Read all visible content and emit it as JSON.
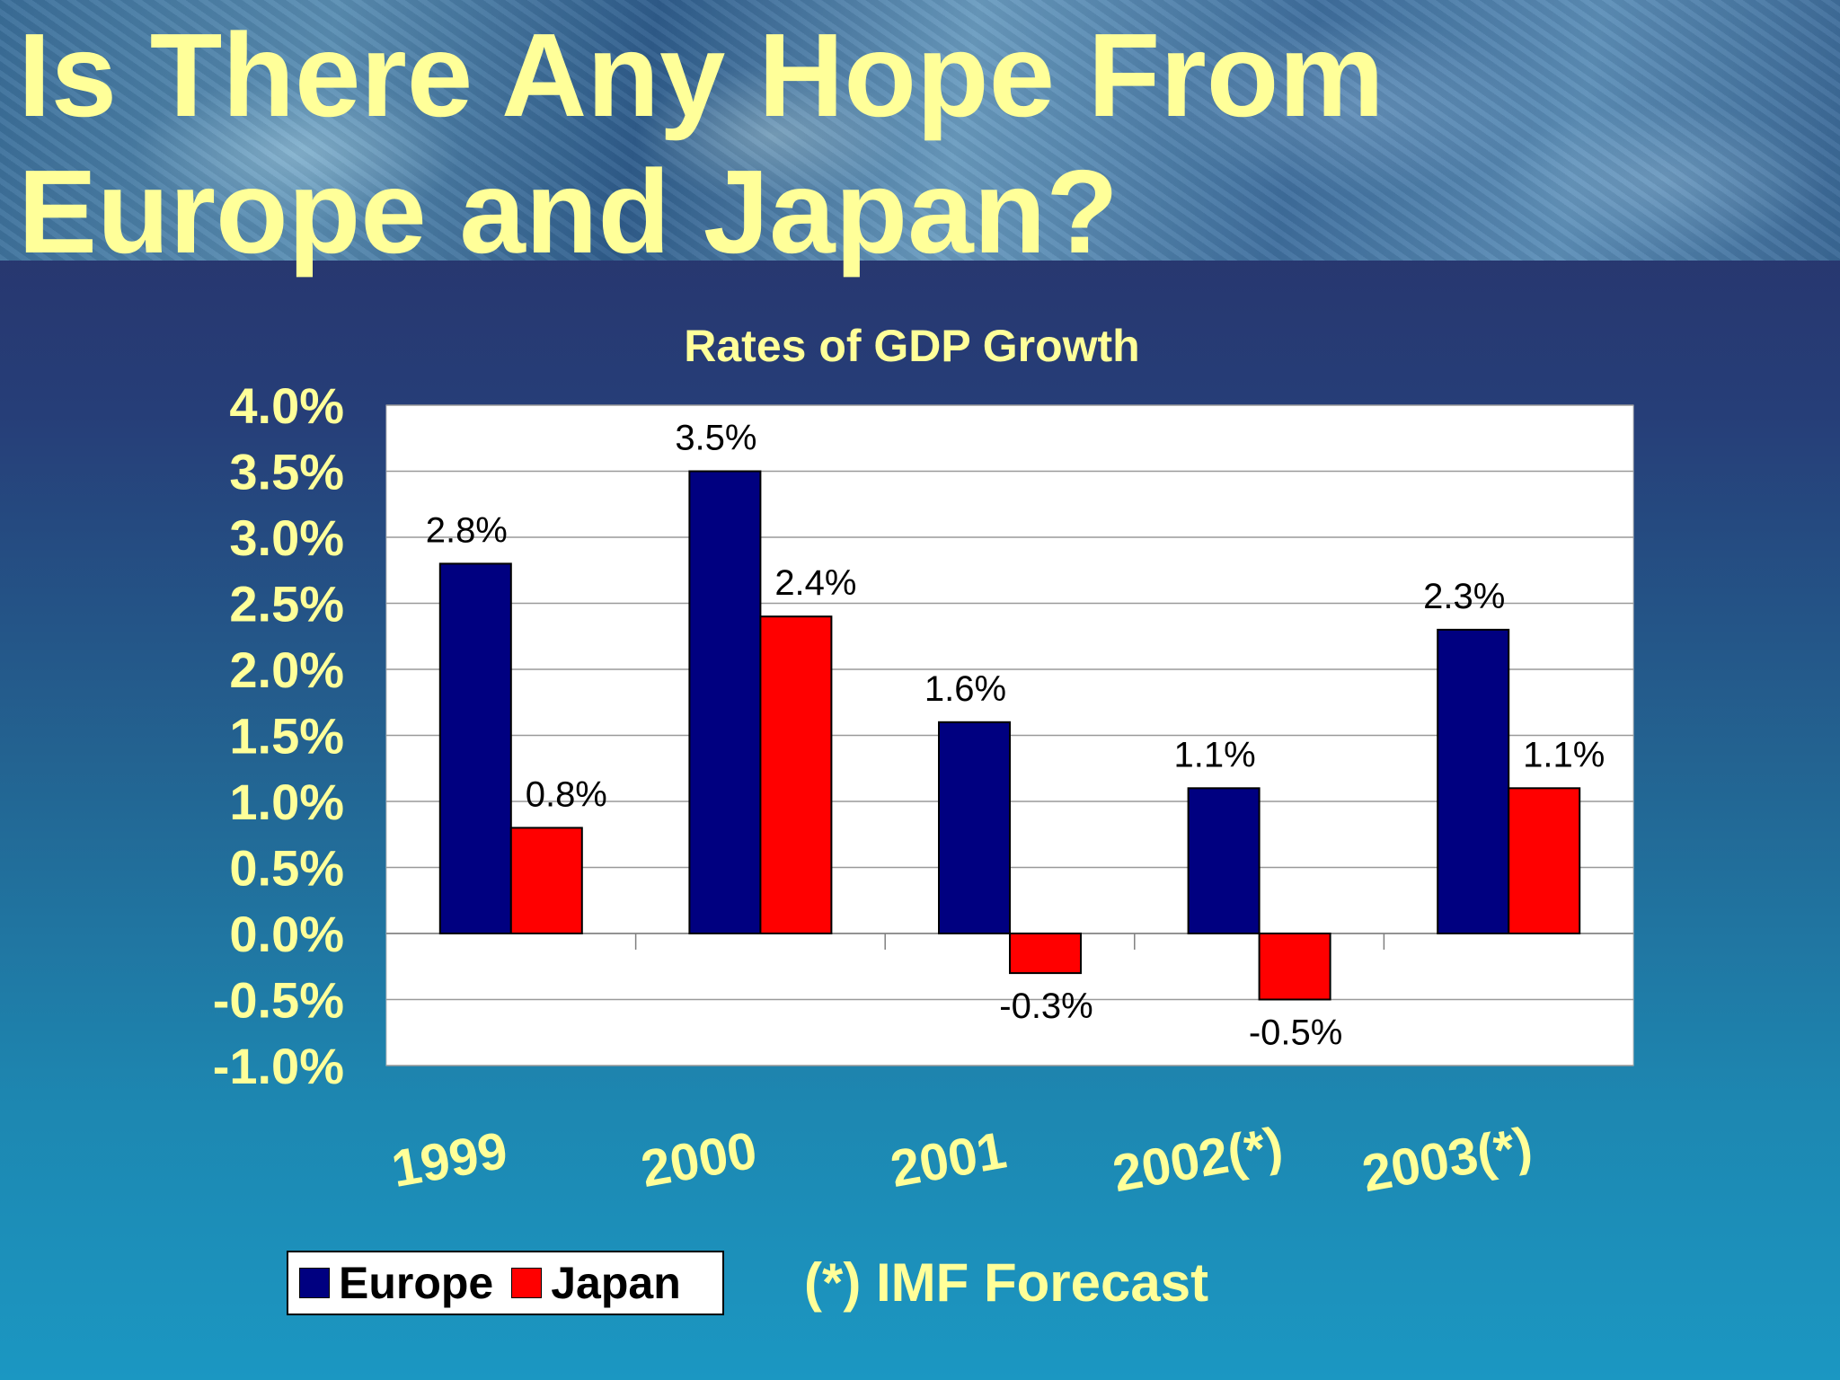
{
  "slide": {
    "title_line1": "Is There Any Hope From",
    "title_line2": "Europe and Japan?",
    "footnote": "(*) IMF Forecast"
  },
  "legend": {
    "items": [
      {
        "label": "Europe",
        "color": "#000080"
      },
      {
        "label": "Japan",
        "color": "#ff0000"
      }
    ]
  },
  "chart_data": {
    "type": "bar",
    "title": "Rates of GDP Growth",
    "categories": [
      "1999",
      "2000",
      "2001",
      "2002(*)",
      "2003(*)"
    ],
    "series": [
      {
        "name": "Europe",
        "color": "#000080",
        "values": [
          2.8,
          3.5,
          1.6,
          1.1,
          2.3
        ],
        "labels": [
          "2.8%",
          "3.5%",
          "1.6%",
          "1.1%",
          "2.3%"
        ]
      },
      {
        "name": "Japan",
        "color": "#ff0000",
        "values": [
          0.8,
          2.4,
          -0.3,
          -0.5,
          1.1
        ],
        "labels": [
          "0.8%",
          "2.4%",
          "-0.3%",
          "-0.5%",
          "1.1%"
        ]
      }
    ],
    "ylim": [
      -1.0,
      4.0
    ],
    "yticks": [
      "4.0%",
      "3.5%",
      "3.0%",
      "2.5%",
      "2.0%",
      "1.5%",
      "1.0%",
      "0.5%",
      "0.0%",
      "-0.5%",
      "-1.0%"
    ],
    "ytick_values": [
      4.0,
      3.5,
      3.0,
      2.5,
      2.0,
      1.5,
      1.0,
      0.5,
      0.0,
      -0.5,
      -1.0
    ],
    "grid": true,
    "legend_position": "bottom-left",
    "xlabel": "",
    "ylabel": ""
  }
}
